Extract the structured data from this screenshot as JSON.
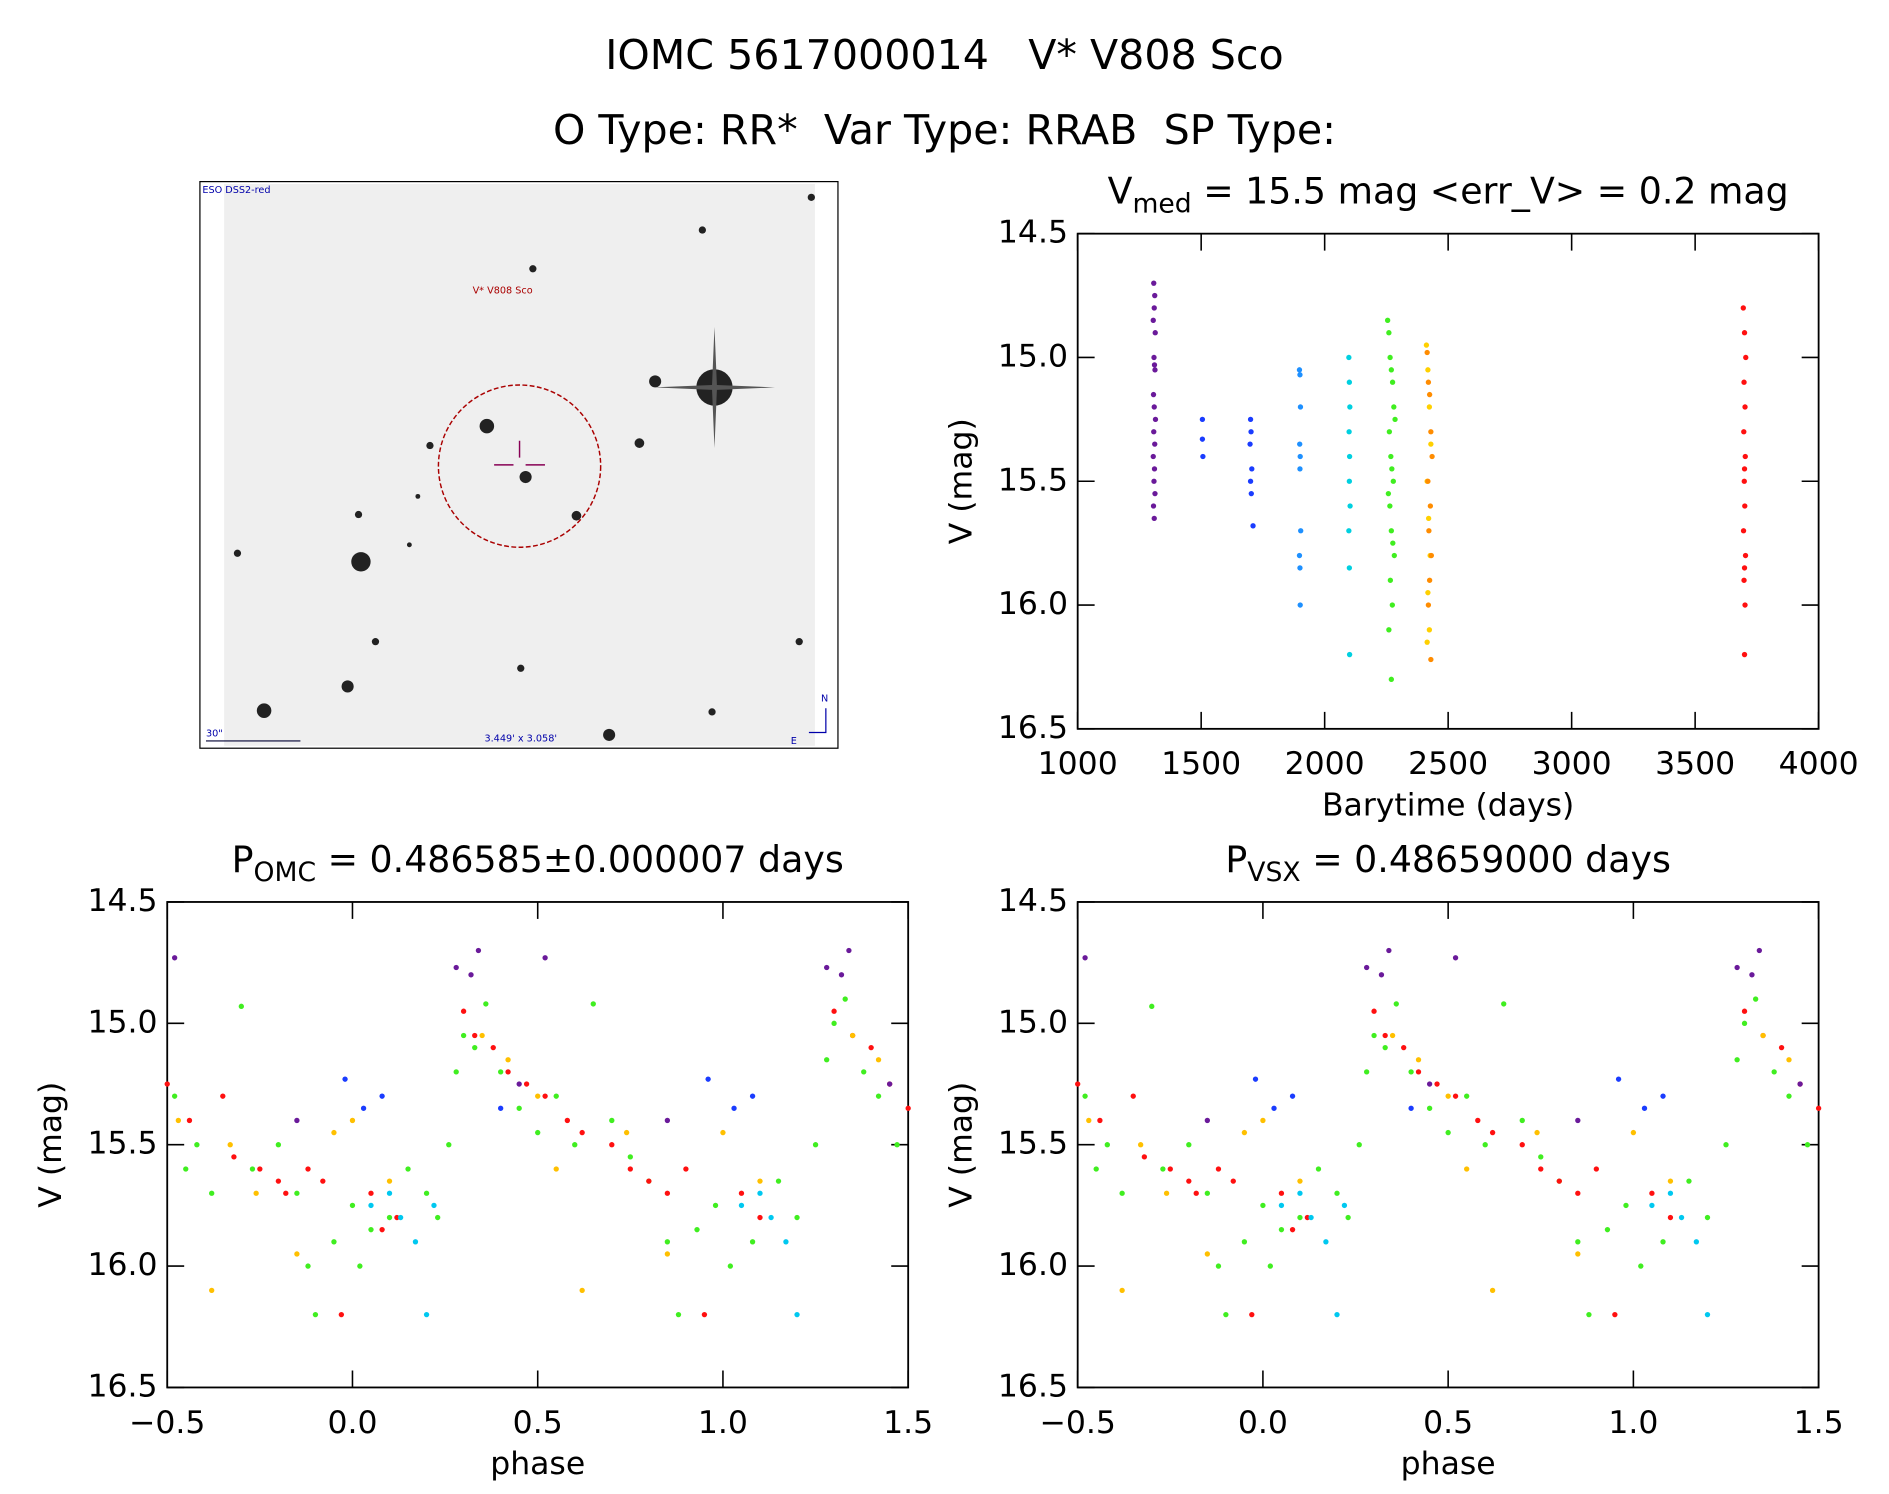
{
  "header": {
    "title": "IOMC 5617000014   V* V808 Sco",
    "subtitle": "O Type: RR*  Var Type: RRAB  SP Type:"
  },
  "image": {
    "survey": "ESO DSS2-red",
    "target": "V* V808 Sco",
    "scale": "30\"",
    "size": "3.449' x 3.058'",
    "north": "N",
    "east": "E"
  },
  "chart_data": [
    {
      "type": "scatter",
      "title": [
        "V",
        "med",
        " = 15.5 mag <err_V> = 0.2 mag"
      ],
      "xlabel": "Barytime (days)",
      "ylabel": "V (mag)",
      "xlim": [
        1000,
        4000
      ],
      "xticks": [
        1000,
        1500,
        2000,
        2500,
        3000,
        3500,
        4000
      ],
      "ylim": [
        16.5,
        14.5
      ],
      "yticks": [
        {
          "value": 16.5,
          "label": "16.5"
        },
        {
          "value": 16,
          "label": "16.0"
        },
        15.5,
        {
          "value": 15,
          "label": "15.0"
        },
        14.5
      ],
      "series": [
        {
          "color": "#6a1a9a",
          "x": [
            1308,
            1312,
            1310,
            1306,
            1314,
            1309,
            1311,
            1313,
            1307,
            1310,
            1315,
            1308,
            1312,
            1306,
            1311,
            1309,
            1313,
            1307,
            1310
          ],
          "y": [
            14.7,
            14.75,
            14.8,
            14.85,
            14.9,
            15.0,
            15.03,
            15.05,
            15.15,
            15.2,
            15.25,
            15.3,
            15.35,
            15.4,
            15.45,
            15.5,
            15.55,
            15.6,
            15.65
          ]
        },
        {
          "color": "#1a3cff",
          "x": [
            1505,
            1505,
            1507,
            1700,
            1702,
            1698,
            1705,
            1700,
            1703,
            1710
          ],
          "y": [
            15.25,
            15.33,
            15.4,
            15.25,
            15.3,
            15.35,
            15.45,
            15.5,
            15.55,
            15.68
          ]
        },
        {
          "color": "#1e90ff",
          "x": [
            1898,
            1900,
            1902,
            1899,
            1901,
            1900,
            1903,
            1898,
            1900,
            1901
          ],
          "y": [
            15.05,
            15.07,
            15.2,
            15.35,
            15.4,
            15.45,
            15.7,
            15.8,
            15.85,
            16.0
          ]
        },
        {
          "color": "#00d0e0",
          "x": [
            2098,
            2100,
            2102,
            2099,
            2101,
            2100,
            2103,
            2098,
            2100,
            2101
          ],
          "y": [
            15.0,
            15.1,
            15.2,
            15.3,
            15.4,
            15.5,
            15.6,
            15.7,
            15.85,
            16.2
          ]
        },
        {
          "color": "#40ee20",
          "x": [
            2255,
            2260,
            2265,
            2270,
            2275,
            2280,
            2285,
            2262,
            2268,
            2272,
            2278,
            2258,
            2264,
            2270,
            2276,
            2282,
            2266,
            2274,
            2260,
            2270
          ],
          "y": [
            14.85,
            14.9,
            15.0,
            15.05,
            15.1,
            15.2,
            15.25,
            15.3,
            15.4,
            15.45,
            15.5,
            15.55,
            15.6,
            15.7,
            15.75,
            15.8,
            15.9,
            16.0,
            16.1,
            16.3
          ]
        },
        {
          "color": "#ffd000",
          "x": [
            2412,
            2418,
            2424,
            2430,
            2415,
            2421,
            2427,
            2418,
            2424,
            2415
          ],
          "y": [
            14.95,
            15.05,
            15.2,
            15.35,
            15.5,
            15.65,
            15.8,
            15.95,
            16.1,
            16.15
          ]
        },
        {
          "color": "#ff8c00",
          "x": [
            2415,
            2420,
            2425,
            2430,
            2435,
            2418,
            2428,
            2422,
            2432,
            2425,
            2420,
            2430
          ],
          "y": [
            14.98,
            15.1,
            15.15,
            15.3,
            15.4,
            15.5,
            15.6,
            15.7,
            15.8,
            15.9,
            16.0,
            16.22
          ]
        },
        {
          "color": "#ff1010",
          "x": [
            3695,
            3700,
            3705,
            3698,
            3702,
            3697,
            3703,
            3700,
            3699,
            3701,
            3696,
            3704,
            3700,
            3698,
            3702,
            3700
          ],
          "y": [
            14.8,
            14.9,
            15.0,
            15.1,
            15.2,
            15.3,
            15.4,
            15.45,
            15.5,
            15.6,
            15.7,
            15.8,
            15.85,
            15.9,
            16.0,
            16.2
          ]
        }
      ]
    },
    {
      "type": "scatter",
      "title": [
        "P",
        "OMC",
        " = 0.486585±0.000007 days"
      ],
      "xlabel": "phase",
      "ylabel": "V (mag)",
      "xlim": [
        -0.5,
        1.5
      ],
      "xticks": [
        {
          "value": -0.5,
          "label": "−0.5"
        },
        {
          "value": 0,
          "label": "0.0"
        },
        0.5,
        {
          "value": 1,
          "label": "1.0"
        },
        1.5
      ],
      "ylim": [
        16.5,
        14.5
      ],
      "yticks": [
        {
          "value": 16.5,
          "label": "16.5"
        },
        {
          "value": 16,
          "label": "16.0"
        },
        15.5,
        {
          "value": 15,
          "label": "15.0"
        },
        14.5
      ],
      "series": [
        {
          "color": "#40ee20",
          "x": [
            -0.48,
            -0.45,
            -0.42,
            -0.38,
            -0.3,
            -0.27,
            -0.2,
            -0.15,
            -0.12,
            -0.1,
            -0.05,
            0.0,
            0.02,
            0.05,
            0.1,
            0.15,
            0.2,
            0.23,
            0.26,
            0.28,
            0.3,
            0.33,
            0.36,
            0.4,
            0.45,
            0.5,
            0.55,
            0.6,
            0.65,
            0.7,
            0.75,
            0.8,
            0.85,
            0.88,
            0.93,
            0.98,
            1.02,
            1.08,
            1.15,
            1.2,
            1.25,
            1.28,
            1.3,
            1.33,
            1.38,
            1.42,
            1.47
          ],
          "y": [
            15.3,
            15.6,
            15.5,
            15.7,
            14.93,
            15.6,
            15.5,
            15.7,
            16.0,
            16.2,
            15.9,
            15.75,
            16.0,
            15.85,
            15.8,
            15.6,
            15.7,
            15.8,
            15.5,
            15.2,
            15.05,
            15.1,
            14.92,
            15.2,
            15.35,
            15.45,
            15.3,
            15.5,
            14.92,
            15.4,
            15.55,
            15.65,
            15.9,
            16.2,
            15.85,
            15.75,
            16.0,
            15.9,
            15.65,
            15.8,
            15.5,
            15.15,
            15.0,
            14.9,
            15.2,
            15.3,
            15.5
          ]
        },
        {
          "color": "#ff1010",
          "x": [
            -0.5,
            -0.44,
            -0.35,
            -0.32,
            -0.25,
            -0.2,
            -0.18,
            -0.12,
            -0.08,
            -0.03,
            0.05,
            0.08,
            0.12,
            0.3,
            0.33,
            0.38,
            0.42,
            0.47,
            0.52,
            0.58,
            0.62,
            0.7,
            0.75,
            0.8,
            0.85,
            0.9,
            0.95,
            1.05,
            1.1,
            1.3,
            1.35,
            1.4,
            1.45,
            1.5
          ],
          "y": [
            15.25,
            15.4,
            15.3,
            15.55,
            15.6,
            15.65,
            15.7,
            15.6,
            15.65,
            16.2,
            15.7,
            15.85,
            15.8,
            14.95,
            15.05,
            15.1,
            15.2,
            15.25,
            15.3,
            15.4,
            15.45,
            15.5,
            15.6,
            15.65,
            15.7,
            15.6,
            16.2,
            15.7,
            15.8,
            14.95,
            15.05,
            15.1,
            15.25,
            15.35
          ]
        },
        {
          "color": "#ffc000",
          "x": [
            -0.47,
            -0.38,
            -0.33,
            -0.26,
            -0.15,
            -0.05,
            0.0,
            0.1,
            0.35,
            0.42,
            0.5,
            0.55,
            0.62,
            0.74,
            0.85,
            1.0,
            1.1,
            1.35,
            1.42
          ],
          "y": [
            15.4,
            16.1,
            15.5,
            15.7,
            15.95,
            15.45,
            15.4,
            15.65,
            15.05,
            15.15,
            15.3,
            15.6,
            16.1,
            15.45,
            15.95,
            15.45,
            15.65,
            15.05,
            15.15
          ]
        },
        {
          "color": "#6a1a9a",
          "x": [
            -0.48,
            -0.15,
            0.28,
            0.32,
            0.34,
            0.45,
            0.52,
            0.85,
            1.28,
            1.32,
            1.34,
            1.45
          ],
          "y": [
            14.73,
            15.4,
            14.77,
            14.8,
            14.7,
            15.25,
            14.73,
            15.4,
            14.77,
            14.8,
            14.7,
            15.25
          ]
        },
        {
          "color": "#1a3cff",
          "x": [
            -0.02,
            0.03,
            0.08,
            0.4,
            0.96,
            1.03,
            1.08
          ],
          "y": [
            15.23,
            15.35,
            15.3,
            15.35,
            15.23,
            15.35,
            15.3
          ]
        },
        {
          "color": "#00c8f0",
          "x": [
            0.05,
            0.1,
            0.13,
            0.17,
            0.2,
            0.22,
            1.05,
            1.1,
            1.13,
            1.17,
            1.2
          ],
          "y": [
            15.75,
            15.7,
            15.8,
            15.9,
            16.2,
            15.75,
            15.75,
            15.7,
            15.8,
            15.9,
            16.2
          ]
        }
      ]
    },
    {
      "type": "scatter",
      "title": [
        "P",
        "VSX",
        " = 0.48659000 days"
      ],
      "xlabel": "phase",
      "ylabel": "V (mag)",
      "xlim": [
        -0.5,
        1.5
      ],
      "xticks": [
        {
          "value": -0.5,
          "label": "−0.5"
        },
        {
          "value": 0,
          "label": "0.0"
        },
        0.5,
        {
          "value": 1,
          "label": "1.0"
        },
        1.5
      ],
      "ylim": [
        16.5,
        14.5
      ],
      "yticks": [
        {
          "value": 16.5,
          "label": "16.5"
        },
        {
          "value": 16,
          "label": "16.0"
        },
        15.5,
        {
          "value": 15,
          "label": "15.0"
        },
        14.5
      ],
      "series": [
        {
          "color": "#40ee20",
          "x": [
            -0.48,
            -0.45,
            -0.42,
            -0.38,
            -0.3,
            -0.27,
            -0.2,
            -0.15,
            -0.12,
            -0.1,
            -0.05,
            0.0,
            0.02,
            0.05,
            0.1,
            0.15,
            0.2,
            0.23,
            0.26,
            0.28,
            0.3,
            0.33,
            0.36,
            0.4,
            0.45,
            0.5,
            0.55,
            0.6,
            0.65,
            0.7,
            0.75,
            0.8,
            0.85,
            0.88,
            0.93,
            0.98,
            1.02,
            1.08,
            1.15,
            1.2,
            1.25,
            1.28,
            1.3,
            1.33,
            1.38,
            1.42,
            1.47
          ],
          "y": [
            15.3,
            15.6,
            15.5,
            15.7,
            14.93,
            15.6,
            15.5,
            15.7,
            16.0,
            16.2,
            15.9,
            15.75,
            16.0,
            15.85,
            15.8,
            15.6,
            15.7,
            15.8,
            15.5,
            15.2,
            15.05,
            15.1,
            14.92,
            15.2,
            15.35,
            15.45,
            15.3,
            15.5,
            14.92,
            15.4,
            15.55,
            15.65,
            15.9,
            16.2,
            15.85,
            15.75,
            16.0,
            15.9,
            15.65,
            15.8,
            15.5,
            15.15,
            15.0,
            14.9,
            15.2,
            15.3,
            15.5
          ]
        },
        {
          "color": "#ff1010",
          "x": [
            -0.5,
            -0.44,
            -0.35,
            -0.32,
            -0.25,
            -0.2,
            -0.18,
            -0.12,
            -0.08,
            -0.03,
            0.05,
            0.08,
            0.12,
            0.3,
            0.33,
            0.38,
            0.42,
            0.47,
            0.52,
            0.58,
            0.62,
            0.7,
            0.75,
            0.8,
            0.85,
            0.9,
            0.95,
            1.05,
            1.1,
            1.3,
            1.35,
            1.4,
            1.45,
            1.5
          ],
          "y": [
            15.25,
            15.4,
            15.3,
            15.55,
            15.6,
            15.65,
            15.7,
            15.6,
            15.65,
            16.2,
            15.7,
            15.85,
            15.8,
            14.95,
            15.05,
            15.1,
            15.2,
            15.25,
            15.3,
            15.4,
            15.45,
            15.5,
            15.6,
            15.65,
            15.7,
            15.6,
            16.2,
            15.7,
            15.8,
            14.95,
            15.05,
            15.1,
            15.25,
            15.35
          ]
        },
        {
          "color": "#ffc000",
          "x": [
            -0.47,
            -0.38,
            -0.33,
            -0.26,
            -0.15,
            -0.05,
            0.0,
            0.1,
            0.35,
            0.42,
            0.5,
            0.55,
            0.62,
            0.74,
            0.85,
            1.0,
            1.1,
            1.35,
            1.42
          ],
          "y": [
            15.4,
            16.1,
            15.5,
            15.7,
            15.95,
            15.45,
            15.4,
            15.65,
            15.05,
            15.15,
            15.3,
            15.6,
            16.1,
            15.45,
            15.95,
            15.45,
            15.65,
            15.05,
            15.15
          ]
        },
        {
          "color": "#6a1a9a",
          "x": [
            -0.48,
            -0.15,
            0.28,
            0.32,
            0.34,
            0.45,
            0.52,
            0.85,
            1.28,
            1.32,
            1.34,
            1.45
          ],
          "y": [
            14.73,
            15.4,
            14.77,
            14.8,
            14.7,
            15.25,
            14.73,
            15.4,
            14.77,
            14.8,
            14.7,
            15.25
          ]
        },
        {
          "color": "#1a3cff",
          "x": [
            -0.02,
            0.03,
            0.08,
            0.4,
            0.96,
            1.03,
            1.08
          ],
          "y": [
            15.23,
            15.35,
            15.3,
            15.35,
            15.23,
            15.35,
            15.3
          ]
        },
        {
          "color": "#00c8f0",
          "x": [
            0.05,
            0.1,
            0.13,
            0.17,
            0.2,
            0.22,
            1.05,
            1.1,
            1.13,
            1.17,
            1.2
          ],
          "y": [
            15.75,
            15.7,
            15.8,
            15.9,
            16.2,
            15.75,
            15.75,
            15.7,
            15.8,
            15.9,
            16.2
          ]
        }
      ]
    }
  ]
}
